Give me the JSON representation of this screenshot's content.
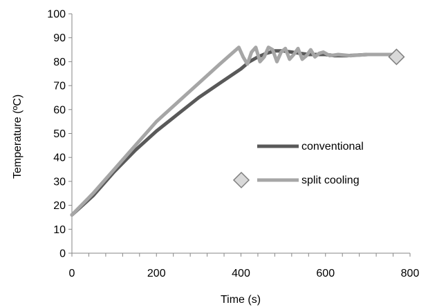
{
  "chart_data": {
    "type": "line",
    "xlabel": "Time (s)",
    "ylabel": "Temperature (ºC)",
    "xlim": [
      0,
      800
    ],
    "ylim": [
      0,
      100
    ],
    "x_ticks": [
      0,
      200,
      400,
      600,
      800
    ],
    "y_ticks": [
      0,
      10,
      20,
      30,
      40,
      50,
      60,
      70,
      80,
      90,
      100
    ],
    "x_tick_labels": [
      "0",
      "200",
      "400",
      "600",
      "800"
    ],
    "y_tick_labels": [
      "0",
      "10",
      "20",
      "30",
      "40",
      "50",
      "60",
      "70",
      "80",
      "90",
      "100"
    ],
    "grid": false,
    "legend_position": "right",
    "series": [
      {
        "name": "conventional",
        "color": "#595959",
        "x": [
          0,
          50,
          100,
          150,
          200,
          250,
          300,
          350,
          400,
          420,
          440,
          460,
          480,
          500,
          520,
          540,
          560,
          580,
          600,
          620,
          650,
          700,
          760
        ],
        "y": [
          16,
          24,
          34,
          43,
          51,
          58,
          65,
          71,
          77,
          80,
          82,
          83.5,
          84.5,
          84.5,
          84,
          83.5,
          83,
          83,
          83,
          82.5,
          82.5,
          83,
          83
        ]
      },
      {
        "name": "split cooling",
        "color": "#a6a6a6",
        "x": [
          0,
          50,
          100,
          150,
          200,
          250,
          300,
          350,
          395,
          405,
          415,
          425,
          435,
          445,
          455,
          465,
          475,
          485,
          495,
          505,
          515,
          525,
          535,
          545,
          555,
          565,
          575,
          585,
          595,
          610,
          630,
          660,
          700,
          760
        ],
        "y": [
          16,
          25,
          35,
          45,
          55,
          63,
          71,
          79,
          86,
          82,
          79,
          84,
          86,
          80,
          82,
          86,
          85,
          80,
          84,
          85.5,
          81,
          83,
          85.5,
          81,
          82.5,
          85,
          82,
          83.5,
          84,
          82.5,
          83,
          82.5,
          83,
          83
        ]
      }
    ],
    "markers": [
      {
        "x": 768,
        "y": 82
      }
    ]
  }
}
